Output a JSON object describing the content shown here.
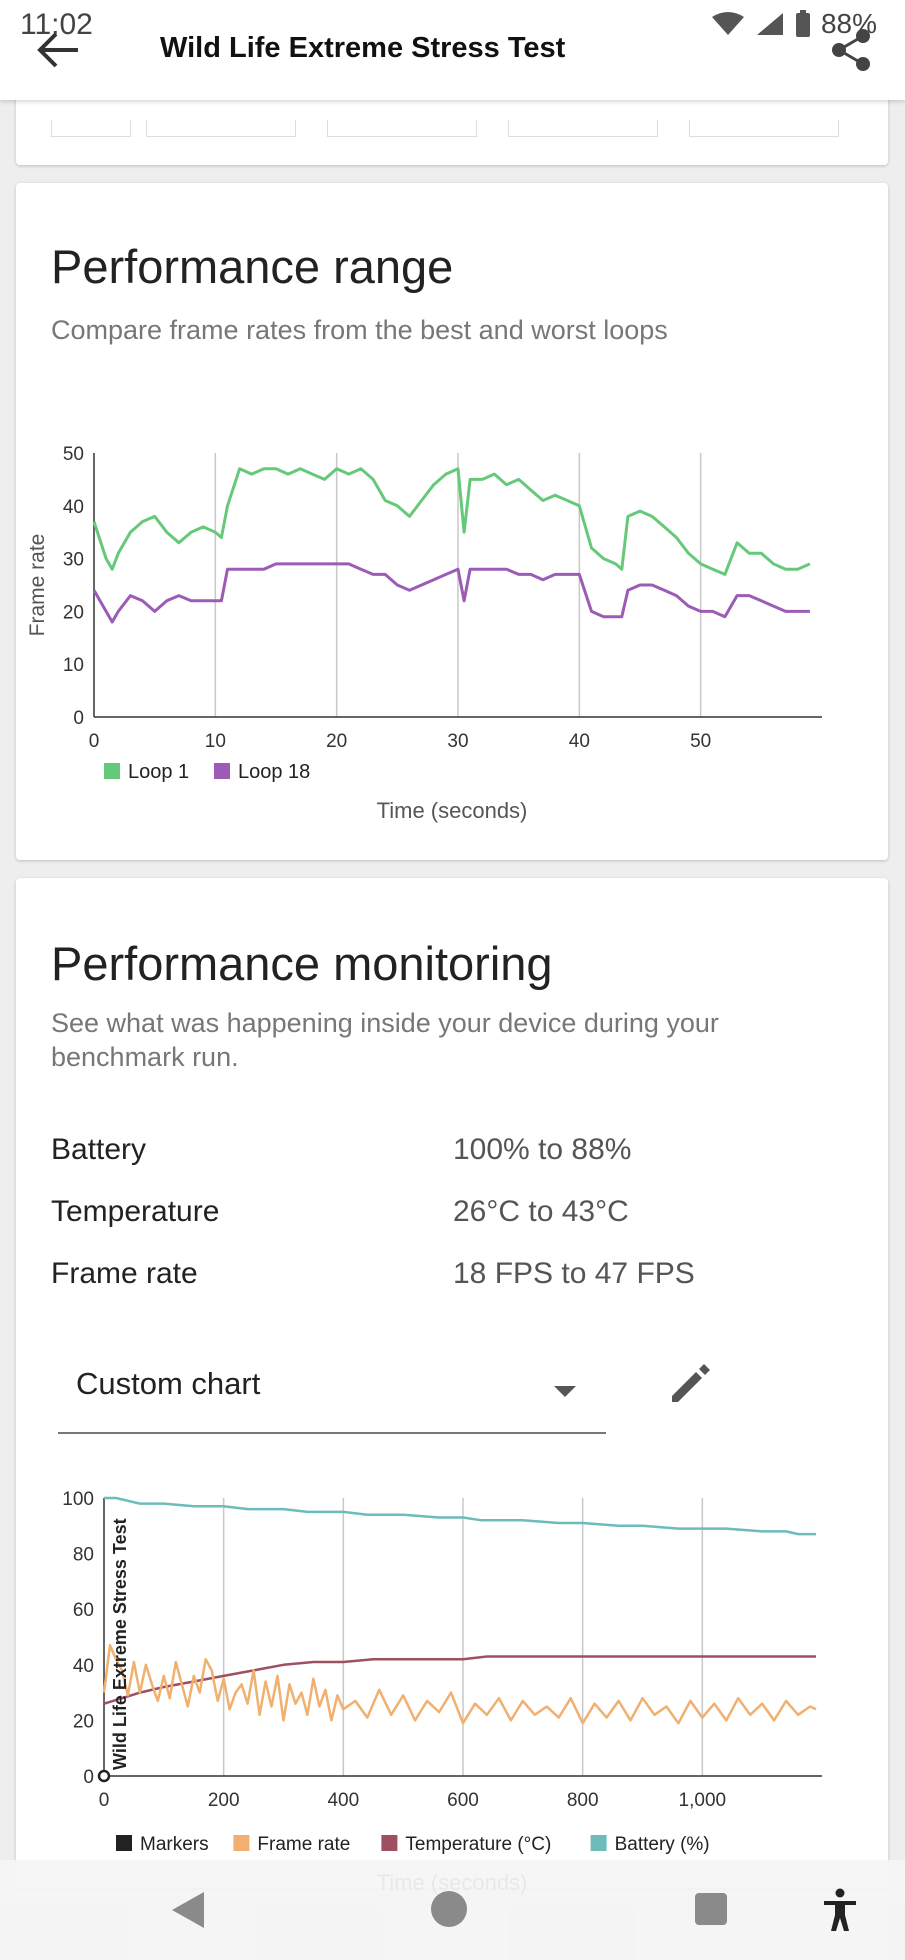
{
  "status": {
    "time": "11:02",
    "battery": "88%"
  },
  "header": {
    "title": "Wild Life Extreme Stress Test"
  },
  "range_card": {
    "title": "Performance range",
    "subtitle": "Compare frame rates from the best and worst loops"
  },
  "monitor_card": {
    "title": "Performance monitoring",
    "subtitle": "See what was happening inside your device during your benchmark run.",
    "rows": [
      {
        "label": "Battery",
        "value": "100% to 88%"
      },
      {
        "label": "Temperature",
        "value": "26°C to 43°C"
      },
      {
        "label": "Frame rate",
        "value": "18 FPS to 47 FPS"
      }
    ],
    "select_value": "Custom chart"
  },
  "chart_data": [
    {
      "type": "line",
      "title": "",
      "xlabel": "Time (seconds)",
      "ylabel": "Frame rate",
      "xlim": [
        0,
        60
      ],
      "ylim": [
        0,
        50
      ],
      "x_ticks": [
        "0",
        "10",
        "20",
        "30",
        "40",
        "50"
      ],
      "y_ticks": [
        "0",
        "10",
        "20",
        "30",
        "40",
        "50"
      ],
      "legend": "bottom-left",
      "series": [
        {
          "name": "Loop 1",
          "color": "#66c97a",
          "x": [
            0,
            1,
            1.5,
            2,
            3,
            4,
            5,
            6,
            7,
            8,
            9,
            10,
            10.5,
            11,
            12,
            13,
            14,
            15,
            16,
            17,
            18,
            19,
            20,
            21,
            22,
            23,
            24,
            25,
            26,
            27,
            28,
            29,
            30,
            30.5,
            31,
            32,
            33,
            34,
            35,
            36,
            37,
            38,
            39,
            40,
            41,
            42,
            43,
            43.5,
            44,
            45,
            46,
            47,
            48,
            49,
            50,
            51,
            52,
            53,
            54,
            55,
            56,
            57,
            58,
            59
          ],
          "values": [
            37,
            30,
            28,
            31,
            35,
            37,
            38,
            35,
            33,
            35,
            36,
            35,
            34,
            40,
            47,
            46,
            47,
            47,
            46,
            47,
            46,
            45,
            47,
            46,
            47,
            45,
            41,
            40,
            38,
            41,
            44,
            46,
            47,
            35,
            45,
            45,
            46,
            44,
            45,
            43,
            41,
            42,
            41,
            40,
            32,
            30,
            29,
            28,
            38,
            39,
            38,
            36,
            34,
            31,
            29,
            28,
            27,
            33,
            31,
            31,
            29,
            28,
            28,
            29
          ]
        },
        {
          "name": "Loop 18",
          "color": "#9c5bb5",
          "x": [
            0,
            1,
            1.5,
            2,
            3,
            4,
            5,
            6,
            7,
            8,
            9,
            10,
            10.5,
            11,
            12,
            13,
            14,
            15,
            16,
            17,
            18,
            19,
            20,
            21,
            22,
            23,
            24,
            25,
            26,
            27,
            28,
            29,
            30,
            30.5,
            31,
            32,
            33,
            34,
            35,
            36,
            37,
            38,
            39,
            40,
            41,
            42,
            43,
            43.5,
            44,
            45,
            46,
            47,
            48,
            49,
            50,
            51,
            52,
            53,
            54,
            55,
            56,
            57,
            58,
            59
          ],
          "values": [
            24,
            20,
            18,
            20,
            23,
            22,
            20,
            22,
            23,
            22,
            22,
            22,
            22,
            28,
            28,
            28,
            28,
            29,
            29,
            29,
            29,
            29,
            29,
            29,
            28,
            27,
            27,
            25,
            24,
            25,
            26,
            27,
            28,
            22,
            28,
            28,
            28,
            28,
            27,
            27,
            26,
            27,
            27,
            27,
            20,
            19,
            19,
            19,
            24,
            25,
            25,
            24,
            23,
            21,
            20,
            20,
            19,
            23,
            23,
            22,
            21,
            20,
            20,
            20
          ]
        }
      ]
    },
    {
      "type": "line",
      "title": "",
      "xlabel": "Time (seconds)",
      "ylabel": "",
      "xlim": [
        0,
        1200
      ],
      "ylim": [
        0,
        100
      ],
      "x_ticks": [
        "0",
        "200",
        "400",
        "600",
        "800",
        "1,000"
      ],
      "y_ticks": [
        "0",
        "20",
        "40",
        "60",
        "80",
        "100"
      ],
      "marker_label": "Wild Life Extreme Stress Test",
      "legend": "bottom",
      "legend_items": [
        {
          "name": "Markers",
          "color": "#222222"
        },
        {
          "name": "Frame rate",
          "color": "#f0b070"
        },
        {
          "name": "Temperature (°C)",
          "color": "#9e5060"
        },
        {
          "name": "Battery (%)",
          "color": "#6cbcbc"
        }
      ],
      "series": [
        {
          "name": "Battery (%)",
          "color": "#6cbcbc",
          "x": [
            0,
            20,
            40,
            60,
            100,
            150,
            200,
            240,
            300,
            340,
            400,
            440,
            500,
            560,
            600,
            630,
            700,
            760,
            800,
            860,
            900,
            960,
            1000,
            1040,
            1100,
            1140,
            1160,
            1190
          ],
          "values": [
            100,
            100,
            99,
            98,
            98,
            97,
            97,
            96,
            96,
            95,
            95,
            94,
            94,
            93,
            93,
            92,
            92,
            91,
            91,
            90,
            90,
            89,
            89,
            89,
            88,
            88,
            87,
            87
          ]
        },
        {
          "name": "Temperature (°C)",
          "color": "#9e5060",
          "x": [
            0,
            30,
            60,
            100,
            150,
            200,
            250,
            300,
            350,
            400,
            450,
            500,
            550,
            600,
            640,
            700,
            800,
            900,
            1000,
            1100,
            1190
          ],
          "values": [
            26,
            28,
            30,
            32,
            34,
            36,
            38,
            40,
            41,
            41,
            42,
            42,
            42,
            42,
            43,
            43,
            43,
            43,
            43,
            43,
            43
          ]
        },
        {
          "name": "Frame rate",
          "color": "#f0b070",
          "x": [
            0,
            10,
            20,
            30,
            40,
            50,
            60,
            70,
            80,
            90,
            100,
            110,
            120,
            130,
            140,
            150,
            160,
            170,
            180,
            190,
            200,
            210,
            220,
            230,
            240,
            250,
            260,
            270,
            280,
            290,
            300,
            310,
            320,
            330,
            340,
            350,
            360,
            370,
            380,
            390,
            400,
            420,
            440,
            460,
            480,
            500,
            520,
            540,
            560,
            580,
            600,
            620,
            640,
            660,
            680,
            700,
            720,
            740,
            760,
            780,
            800,
            820,
            840,
            860,
            880,
            900,
            920,
            940,
            960,
            980,
            1000,
            1020,
            1040,
            1060,
            1080,
            1100,
            1120,
            1140,
            1160,
            1180,
            1190
          ],
          "values": [
            30,
            47,
            42,
            38,
            29,
            41,
            30,
            40,
            33,
            27,
            36,
            28,
            41,
            33,
            25,
            36,
            30,
            42,
            38,
            27,
            35,
            24,
            30,
            33,
            26,
            38,
            22,
            34,
            25,
            36,
            20,
            33,
            26,
            30,
            22,
            35,
            25,
            31,
            20,
            29,
            24,
            27,
            21,
            31,
            22,
            29,
            20,
            27,
            23,
            30,
            19,
            26,
            22,
            28,
            20,
            27,
            22,
            25,
            21,
            28,
            19,
            26,
            21,
            27,
            20,
            28,
            22,
            25,
            19,
            27,
            21,
            26,
            20,
            28,
            22,
            26,
            20,
            27,
            22,
            25,
            24
          ]
        }
      ]
    }
  ]
}
